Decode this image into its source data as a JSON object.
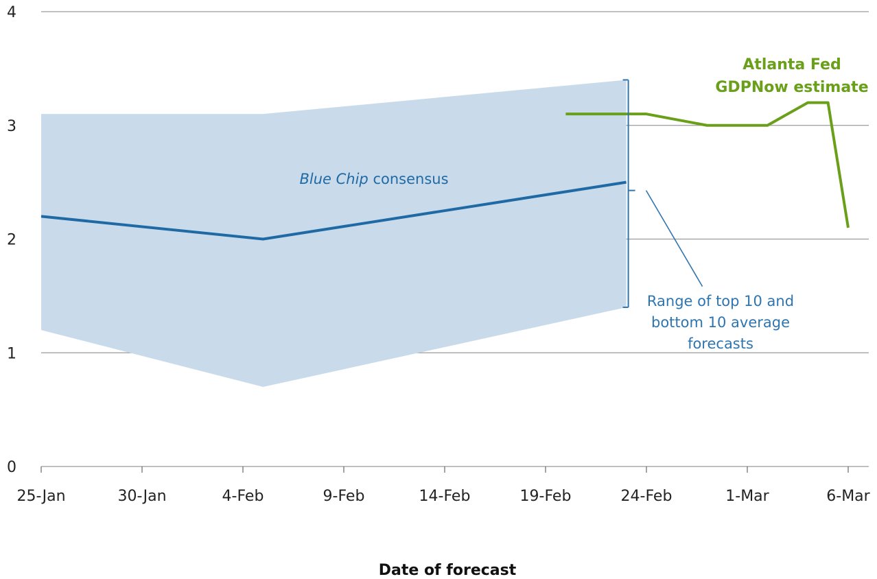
{
  "chart_data": {
    "type": "line",
    "xlabel": "Date of forecast",
    "ylabel": "",
    "ylim": [
      0,
      4
    ],
    "yticks": [
      "0",
      "1",
      "2",
      "3",
      "4"
    ],
    "xticks": [
      "25-Jan",
      "30-Jan",
      "4-Feb",
      "9-Feb",
      "14-Feb",
      "19-Feb",
      "24-Feb",
      "1-Mar",
      "6-Mar"
    ],
    "grid": "horizontal",
    "series": [
      {
        "name": "Blue Chip consensus",
        "kind": "line",
        "color": "#1f6aa5",
        "points": [
          {
            "x": "25-Jan",
            "y": 2.2
          },
          {
            "x": "5-Feb",
            "y": 2.0
          },
          {
            "x": "23-Feb",
            "y": 2.5
          }
        ]
      },
      {
        "name": "Range of top 10 and bottom 10 average forecasts",
        "kind": "band",
        "color": "#c9dbea",
        "points": [
          {
            "x": "25-Jan",
            "upper": 3.1,
            "lower": 1.2
          },
          {
            "x": "5-Feb",
            "upper": 3.1,
            "lower": 0.7
          },
          {
            "x": "23-Feb",
            "upper": 3.4,
            "lower": 1.4
          }
        ]
      },
      {
        "name": "Atlanta Fed GDPNow estimate",
        "kind": "line",
        "color": "#6a9f1a",
        "points": [
          {
            "x": "20-Feb",
            "y": 3.1
          },
          {
            "x": "24-Feb",
            "y": 3.1
          },
          {
            "x": "27-Feb",
            "y": 3.0
          },
          {
            "x": "2-Mar",
            "y": 3.0
          },
          {
            "x": "4-Mar",
            "y": 3.2
          },
          {
            "x": "5-Mar",
            "y": 3.2
          },
          {
            "x": "6-Mar",
            "y": 2.1
          }
        ]
      }
    ],
    "annotations": {
      "blue_chip_italic": "Blue Chip",
      "blue_chip_rest": "consensus",
      "range_lines": [
        "Range of top 10 and",
        "bottom 10 average",
        "forecasts"
      ],
      "gdpnow_lines": [
        "Atlanta Fed",
        "GDPNow estimate"
      ]
    }
  }
}
